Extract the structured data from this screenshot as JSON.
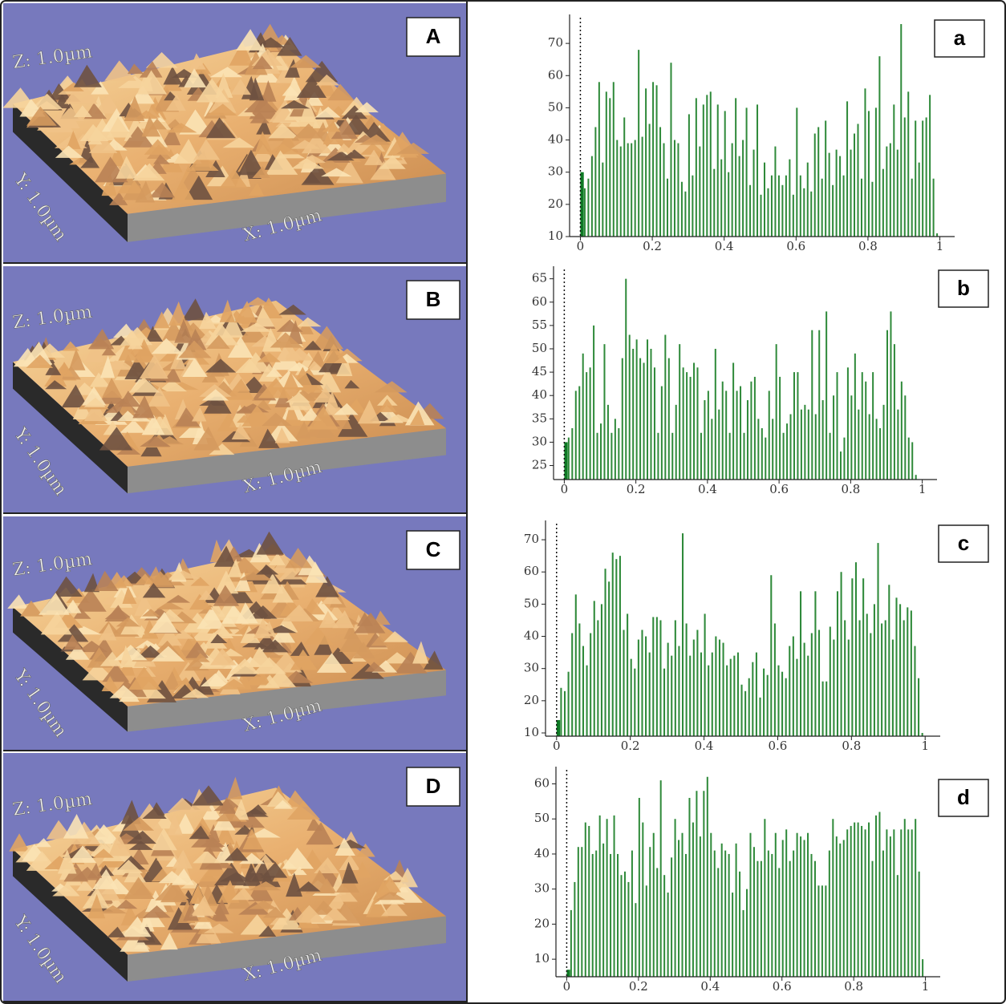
{
  "afm_images": [
    {
      "label": "A",
      "z_axis": "Z: 1.0µm",
      "y_axis": "Y: 1.0µm",
      "x_axis": "X: 1.0µm"
    },
    {
      "label": "B",
      "z_axis": "Z: 1.0µm",
      "y_axis": "Y: 1.0µm",
      "x_axis": "X: 1.0µm"
    },
    {
      "label": "C",
      "z_axis": "Z: 1.0µm",
      "y_axis": "Y: 1.0µm",
      "x_axis": "X: 1.0µm"
    },
    {
      "label": "D",
      "z_axis": "Z: 1.0µm",
      "y_axis": "Y: 1.0µm",
      "x_axis": "X: 1.0µm"
    }
  ],
  "chart_data": [
    {
      "type": "histogram",
      "panel_label": "a",
      "color": "#2f8a3a",
      "xlim": [
        -0.03,
        1.03
      ],
      "xticks": [
        0,
        0.2,
        0.4,
        0.6,
        0.8,
        1
      ],
      "ylim": [
        10,
        78
      ],
      "yticks": [
        10,
        20,
        30,
        40,
        50,
        60,
        70
      ],
      "bins": [
        0,
        0.01,
        0.02,
        0.03,
        0.04,
        0.05,
        0.06,
        0.07,
        0.08,
        0.09,
        0.1,
        0.11,
        0.12,
        0.13,
        0.14,
        0.15,
        0.16,
        0.17,
        0.18,
        0.19,
        0.2,
        0.21,
        0.22,
        0.23,
        0.24,
        0.25,
        0.26,
        0.27,
        0.28,
        0.29,
        0.3,
        0.31,
        0.32,
        0.33,
        0.34,
        0.35,
        0.36,
        0.37,
        0.38,
        0.39,
        0.4,
        0.41,
        0.42,
        0.43,
        0.44,
        0.45,
        0.46,
        0.47,
        0.48,
        0.49,
        0.5,
        0.51,
        0.52,
        0.53,
        0.54,
        0.55,
        0.56,
        0.57,
        0.58,
        0.59,
        0.6,
        0.61,
        0.62,
        0.63,
        0.64,
        0.65,
        0.66,
        0.67,
        0.68,
        0.69,
        0.7,
        0.71,
        0.72,
        0.73,
        0.74,
        0.75,
        0.76,
        0.77,
        0.78,
        0.79,
        0.8,
        0.81,
        0.82,
        0.83,
        0.84,
        0.85,
        0.86,
        0.87,
        0.88,
        0.89,
        0.9,
        0.91,
        0.92,
        0.93,
        0.94,
        0.95,
        0.96,
        0.97,
        0.98,
        0.99,
        1
      ],
      "values": [
        30,
        25,
        28,
        35,
        44,
        58,
        33,
        55,
        53,
        58,
        40,
        38,
        47,
        39,
        39,
        40,
        68,
        41,
        56,
        45,
        58,
        57,
        44,
        39,
        28,
        64,
        40,
        39,
        27,
        24,
        48,
        29,
        53,
        38,
        51,
        54,
        55,
        31,
        51,
        34,
        49,
        30,
        39,
        53,
        35,
        40,
        50,
        26,
        37,
        51,
        23,
        33,
        25,
        29,
        38,
        29,
        26,
        29,
        34,
        23,
        50,
        29,
        25,
        33,
        24,
        42,
        44,
        28,
        46,
        36,
        26,
        37,
        35,
        29,
        52,
        37,
        42,
        45,
        28,
        56,
        49,
        27,
        50,
        66,
        31,
        38,
        39,
        51,
        37,
        76,
        47,
        55,
        28,
        46,
        33,
        46,
        47,
        54,
        28,
        11
      ]
    },
    {
      "type": "histogram",
      "panel_label": "b",
      "color": "#2f8a3a",
      "xlim": [
        -0.03,
        1.03
      ],
      "xticks": [
        0,
        0.2,
        0.4,
        0.6,
        0.8,
        1
      ],
      "ylim": [
        22,
        67
      ],
      "yticks": [
        25,
        30,
        35,
        40,
        45,
        50,
        55,
        60,
        65
      ],
      "bins": [
        0,
        0.01,
        0.02,
        0.03,
        0.04,
        0.05,
        0.06,
        0.07,
        0.08,
        0.09,
        0.1,
        0.11,
        0.12,
        0.13,
        0.14,
        0.15,
        0.16,
        0.17,
        0.18,
        0.19,
        0.2,
        0.21,
        0.22,
        0.23,
        0.24,
        0.25,
        0.26,
        0.27,
        0.28,
        0.29,
        0.3,
        0.31,
        0.32,
        0.33,
        0.34,
        0.35,
        0.36,
        0.37,
        0.38,
        0.39,
        0.4,
        0.41,
        0.42,
        0.43,
        0.44,
        0.45,
        0.46,
        0.47,
        0.48,
        0.49,
        0.5,
        0.51,
        0.52,
        0.53,
        0.54,
        0.55,
        0.56,
        0.57,
        0.58,
        0.59,
        0.6,
        0.61,
        0.62,
        0.63,
        0.64,
        0.65,
        0.66,
        0.67,
        0.68,
        0.69,
        0.7,
        0.71,
        0.72,
        0.73,
        0.74,
        0.75,
        0.76,
        0.77,
        0.78,
        0.79,
        0.8,
        0.81,
        0.82,
        0.83,
        0.84,
        0.85,
        0.86,
        0.87,
        0.88,
        0.89,
        0.9,
        0.91,
        0.92,
        0.93,
        0.94,
        0.95,
        0.96,
        0.97,
        0.98,
        0.99,
        1
      ],
      "values": [
        30,
        31,
        33,
        41,
        42,
        49,
        45,
        46,
        55,
        32,
        34,
        51,
        38,
        32,
        35,
        33,
        48,
        65,
        53,
        50,
        52,
        48,
        47,
        52,
        50,
        46,
        32,
        42,
        53,
        48,
        32,
        38,
        51,
        46,
        45,
        44,
        47,
        46,
        32,
        39,
        41,
        35,
        50,
        37,
        43,
        41,
        32,
        47,
        41,
        42,
        32,
        39,
        43,
        44,
        35,
        33,
        31,
        41,
        35,
        51,
        44,
        32,
        34,
        36,
        45,
        45,
        37,
        38,
        37,
        54,
        36,
        54,
        39,
        58,
        32,
        40,
        45,
        28,
        31,
        46,
        40,
        49,
        37,
        45,
        43,
        36,
        45,
        35,
        33,
        38,
        54,
        58,
        51,
        37,
        43,
        40,
        31,
        30,
        23,
        22
      ]
    },
    {
      "type": "histogram",
      "panel_label": "c",
      "color": "#2f8a3a",
      "xlim": [
        -0.03,
        1.03
      ],
      "xticks": [
        0,
        0.2,
        0.4,
        0.6,
        0.8,
        1
      ],
      "ylim": [
        9,
        75
      ],
      "yticks": [
        10,
        20,
        30,
        40,
        50,
        60,
        70
      ],
      "bins": [
        0,
        0.01,
        0.02,
        0.03,
        0.04,
        0.05,
        0.06,
        0.07,
        0.08,
        0.09,
        0.1,
        0.11,
        0.12,
        0.13,
        0.14,
        0.15,
        0.16,
        0.17,
        0.18,
        0.19,
        0.2,
        0.21,
        0.22,
        0.23,
        0.24,
        0.25,
        0.26,
        0.27,
        0.28,
        0.29,
        0.3,
        0.31,
        0.32,
        0.33,
        0.34,
        0.35,
        0.36,
        0.37,
        0.38,
        0.39,
        0.4,
        0.41,
        0.42,
        0.43,
        0.44,
        0.45,
        0.46,
        0.47,
        0.48,
        0.49,
        0.5,
        0.51,
        0.52,
        0.53,
        0.54,
        0.55,
        0.56,
        0.57,
        0.58,
        0.59,
        0.6,
        0.61,
        0.62,
        0.63,
        0.64,
        0.65,
        0.66,
        0.67,
        0.68,
        0.69,
        0.7,
        0.71,
        0.72,
        0.73,
        0.74,
        0.75,
        0.76,
        0.77,
        0.78,
        0.79,
        0.8,
        0.81,
        0.82,
        0.83,
        0.84,
        0.85,
        0.86,
        0.87,
        0.88,
        0.89,
        0.9,
        0.91,
        0.92,
        0.93,
        0.94,
        0.95,
        0.96,
        0.97,
        0.98,
        0.99,
        1
      ],
      "values": [
        14,
        24,
        23,
        29,
        41,
        53,
        44,
        37,
        31,
        41,
        51,
        45,
        50,
        61,
        57,
        66,
        64,
        65,
        42,
        47,
        33,
        30,
        39,
        42,
        40,
        35,
        46,
        46,
        45,
        30,
        38,
        34,
        45,
        37,
        72,
        44,
        34,
        39,
        42,
        35,
        47,
        31,
        35,
        40,
        39,
        38,
        31,
        33,
        34,
        35,
        25,
        23,
        27,
        32,
        35,
        21,
        30,
        28,
        59,
        44,
        31,
        29,
        27,
        37,
        40,
        33,
        54,
        38,
        34,
        41,
        54,
        42,
        26,
        26,
        43,
        39,
        54,
        60,
        45,
        39,
        58,
        63,
        45,
        58,
        47,
        41,
        50,
        69,
        44,
        45,
        56,
        39,
        52,
        50,
        45,
        49,
        48,
        37,
        27,
        10
      ]
    },
    {
      "type": "histogram",
      "panel_label": "d",
      "color": "#2f8a3a",
      "xlim": [
        -0.03,
        1.03
      ],
      "xticks": [
        0,
        0.2,
        0.4,
        0.6,
        0.8,
        1
      ],
      "ylim": [
        5,
        64
      ],
      "yticks": [
        10,
        20,
        30,
        40,
        50,
        60
      ],
      "bins": [
        0,
        0.01,
        0.02,
        0.03,
        0.04,
        0.05,
        0.06,
        0.07,
        0.08,
        0.09,
        0.1,
        0.11,
        0.12,
        0.13,
        0.14,
        0.15,
        0.16,
        0.17,
        0.18,
        0.19,
        0.2,
        0.21,
        0.22,
        0.23,
        0.24,
        0.25,
        0.26,
        0.27,
        0.28,
        0.29,
        0.3,
        0.31,
        0.32,
        0.33,
        0.34,
        0.35,
        0.36,
        0.37,
        0.38,
        0.39,
        0.4,
        0.41,
        0.42,
        0.43,
        0.44,
        0.45,
        0.46,
        0.47,
        0.48,
        0.49,
        0.5,
        0.51,
        0.52,
        0.53,
        0.54,
        0.55,
        0.56,
        0.57,
        0.58,
        0.59,
        0.6,
        0.61,
        0.62,
        0.63,
        0.64,
        0.65,
        0.66,
        0.67,
        0.68,
        0.69,
        0.7,
        0.71,
        0.72,
        0.73,
        0.74,
        0.75,
        0.76,
        0.77,
        0.78,
        0.79,
        0.8,
        0.81,
        0.82,
        0.83,
        0.84,
        0.85,
        0.86,
        0.87,
        0.88,
        0.89,
        0.9,
        0.91,
        0.92,
        0.93,
        0.94,
        0.95,
        0.96,
        0.97,
        0.98,
        0.99,
        1
      ],
      "values": [
        7,
        24,
        32,
        42,
        42,
        49,
        48,
        40,
        41,
        51,
        43,
        50,
        40,
        51,
        40,
        34,
        35,
        32,
        41,
        26,
        56,
        49,
        31,
        42,
        46,
        36,
        61,
        34,
        29,
        39,
        50,
        44,
        46,
        40,
        56,
        49,
        58,
        45,
        58,
        62,
        46,
        41,
        36,
        43,
        41,
        40,
        29,
        43,
        35,
        24,
        30,
        46,
        42,
        38,
        38,
        50,
        41,
        40,
        46,
        36,
        44,
        47,
        38,
        41,
        46,
        45,
        44,
        46,
        40,
        38,
        31,
        31,
        31,
        41,
        50,
        45,
        43,
        44,
        47,
        48,
        49,
        49,
        48,
        47,
        49,
        38,
        51,
        52,
        41,
        47,
        45,
        47,
        34,
        47,
        50,
        47,
        47,
        50,
        35,
        10
      ]
    }
  ]
}
